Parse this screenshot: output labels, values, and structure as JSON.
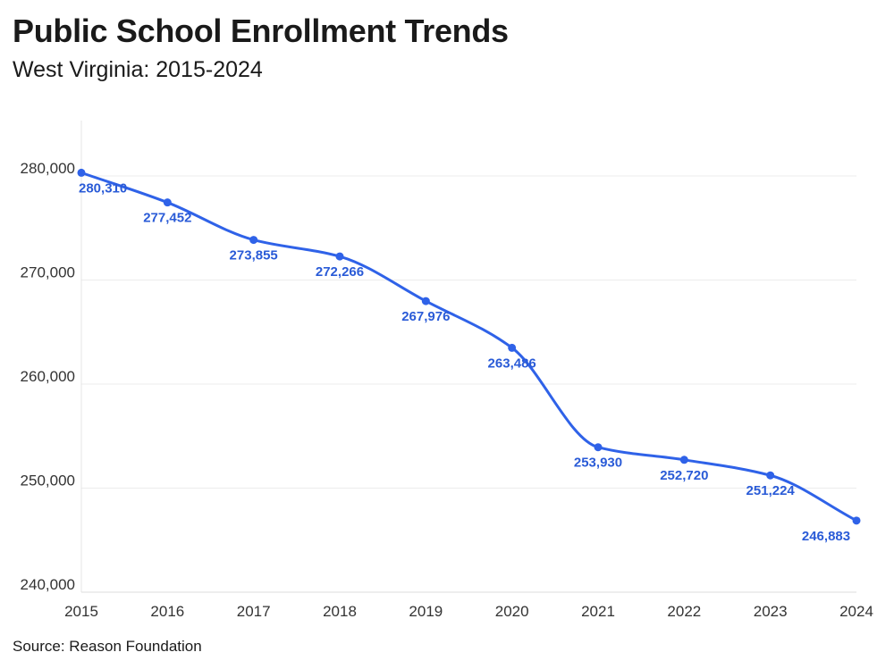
{
  "header": {
    "title": "Public School Enrollment Trends",
    "subtitle": "West Virginia: 2015-2024"
  },
  "footer": {
    "source": "Source: Reason Foundation"
  },
  "colors": {
    "line": "#2f62e8",
    "label": "#2a5bd7",
    "grid": "#ececec"
  },
  "chart_data": {
    "type": "line",
    "title": "Public School Enrollment Trends",
    "subtitle": "West Virginia: 2015-2024",
    "xlabel": "",
    "ylabel": "",
    "x": [
      "2015",
      "2016",
      "2017",
      "2018",
      "2019",
      "2020",
      "2021",
      "2022",
      "2023",
      "2024"
    ],
    "values": [
      280310,
      277452,
      273855,
      272266,
      267976,
      263486,
      253930,
      252720,
      251224,
      246883
    ],
    "value_labels": [
      "280,310",
      "277,452",
      "273,855",
      "272,266",
      "267,976",
      "263,486",
      "253,930",
      "252,720",
      "251,224",
      "246,883"
    ],
    "ylim": [
      240000,
      282000
    ],
    "yticks": [
      240000,
      250000,
      260000,
      270000,
      280000
    ],
    "ytick_labels": [
      "240,000",
      "250,000",
      "260,000",
      "270,000",
      "280,000"
    ],
    "grid": true,
    "legend": "none"
  }
}
